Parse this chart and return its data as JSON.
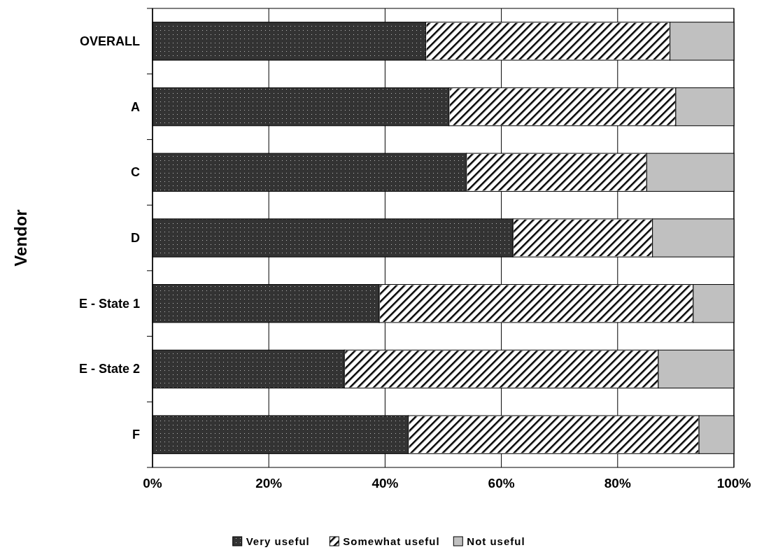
{
  "chart_data": {
    "type": "bar",
    "orientation": "horizontal",
    "stacked": true,
    "ylabel": "Vendor",
    "categories": [
      "OVERALL",
      "A",
      "C",
      "D",
      "E - State 1",
      "E - State 2",
      "F"
    ],
    "series": [
      {
        "name": "Very useful",
        "color": "#333333",
        "values": [
          47,
          51,
          54,
          62,
          39,
          33,
          44
        ]
      },
      {
        "name": "Somewhat useful",
        "color": "#ffffff",
        "values": [
          42,
          39,
          31,
          24,
          54,
          54,
          50
        ]
      },
      {
        "name": "Not useful",
        "color": "#c0c0c0",
        "values": [
          11,
          10,
          15,
          14,
          7,
          13,
          6
        ]
      }
    ],
    "xlim": [
      0,
      100
    ],
    "xticks": [
      {
        "value": 0,
        "label": "0%"
      },
      {
        "value": 20,
        "label": "20%"
      },
      {
        "value": 40,
        "label": "40%"
      },
      {
        "value": 60,
        "label": "60%"
      },
      {
        "value": 80,
        "label": "80%"
      },
      {
        "value": 100,
        "label": "100%"
      }
    ],
    "grid": "x",
    "legend": "bottom"
  }
}
